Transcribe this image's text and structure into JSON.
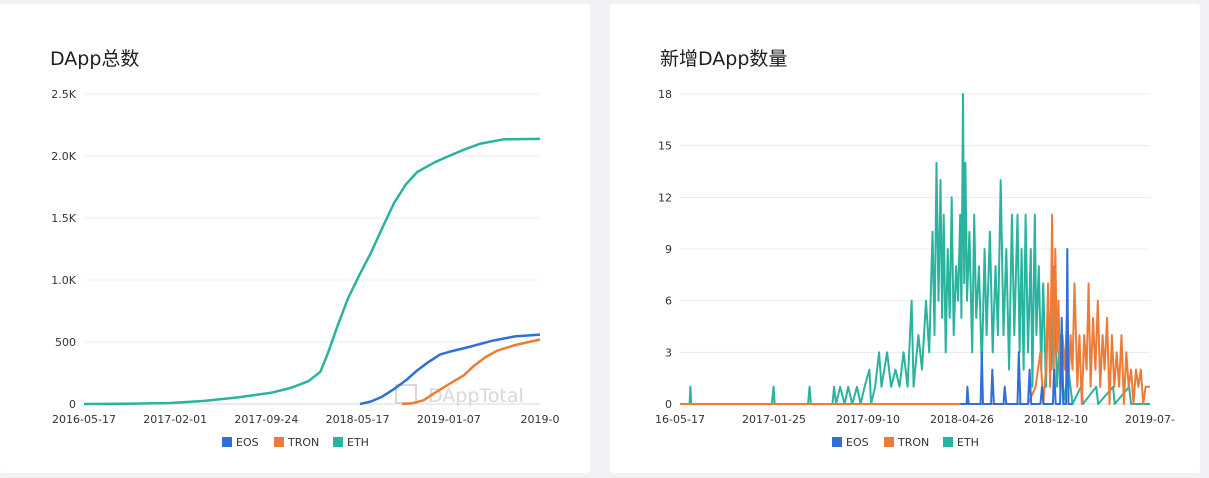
{
  "colors": {
    "EOS": "#2f6fd6",
    "TRON": "#ec7c37",
    "ETH": "#2ab39f"
  },
  "chart_data": [
    {
      "type": "line",
      "title": "DApp总数",
      "x_range": [
        "2016-05-17",
        "2019-09-05"
      ],
      "x_tick_labels": [
        "2016-05-17",
        "2017-02-01",
        "2017-09-24",
        "2018-05-17",
        "2019-01-07",
        "2019-0"
      ],
      "ylim": [
        0,
        2500
      ],
      "y_tick_labels": [
        "0",
        "500",
        "1.0K",
        "1.5K",
        "2.0K",
        "2.5K"
      ],
      "y_ticks": [
        0,
        500,
        1000,
        1500,
        2000,
        2500
      ],
      "legend": [
        "EOS",
        "TRON",
        "ETH"
      ],
      "watermark": "DAppTotal",
      "series": [
        {
          "name": "ETH",
          "points": [
            [
              "2016-05-17",
              0
            ],
            [
              "2016-09-01",
              2
            ],
            [
              "2017-01-01",
              8
            ],
            [
              "2017-04-01",
              25
            ],
            [
              "2017-07-01",
              55
            ],
            [
              "2017-09-24",
              90
            ],
            [
              "2017-11-15",
              130
            ],
            [
              "2018-01-01",
              185
            ],
            [
              "2018-02-01",
              260
            ],
            [
              "2018-02-20",
              400
            ],
            [
              "2018-03-15",
              600
            ],
            [
              "2018-04-15",
              850
            ],
            [
              "2018-05-17",
              1050
            ],
            [
              "2018-06-15",
              1220
            ],
            [
              "2018-07-15",
              1420
            ],
            [
              "2018-08-15",
              1620
            ],
            [
              "2018-09-15",
              1770
            ],
            [
              "2018-10-15",
              1870
            ],
            [
              "2018-12-01",
              1950
            ],
            [
              "2019-01-07",
              2000
            ],
            [
              "2019-02-15",
              2050
            ],
            [
              "2019-04-01",
              2100
            ],
            [
              "2019-06-01",
              2135
            ],
            [
              "2019-09-05",
              2138
            ]
          ]
        },
        {
          "name": "EOS",
          "points": [
            [
              "2018-05-17",
              0
            ],
            [
              "2018-06-15",
              20
            ],
            [
              "2018-07-15",
              60
            ],
            [
              "2018-08-15",
              120
            ],
            [
              "2018-09-15",
              190
            ],
            [
              "2018-10-15",
              270
            ],
            [
              "2018-11-15",
              340
            ],
            [
              "2018-12-15",
              400
            ],
            [
              "2019-01-07",
              420
            ],
            [
              "2019-03-01",
              460
            ],
            [
              "2019-05-01",
              510
            ],
            [
              "2019-07-01",
              545
            ],
            [
              "2019-09-05",
              560
            ]
          ]
        },
        {
          "name": "TRON",
          "points": [
            [
              "2018-09-05",
              0
            ],
            [
              "2018-10-01",
              5
            ],
            [
              "2018-11-01",
              30
            ],
            [
              "2018-12-01",
              90
            ],
            [
              "2019-01-07",
              160
            ],
            [
              "2019-02-15",
              230
            ],
            [
              "2019-03-15",
              310
            ],
            [
              "2019-04-15",
              380
            ],
            [
              "2019-05-15",
              430
            ],
            [
              "2019-07-01",
              475
            ],
            [
              "2019-09-05",
              520
            ]
          ]
        }
      ]
    },
    {
      "type": "line",
      "title": "新增DApp数量",
      "x_range": [
        "2016-05-17",
        "2019-08-01"
      ],
      "x_tick_labels": [
        "16-05-17",
        "2017-01-25",
        "2017-09-10",
        "2018-04-26",
        "2018-12-10",
        "2019-07-"
      ],
      "ylim": [
        0,
        18
      ],
      "y_tick_labels": [
        "0",
        "3",
        "6",
        "9",
        "12",
        "15",
        "18"
      ],
      "y_ticks": [
        0,
        3,
        6,
        9,
        12,
        15,
        18
      ],
      "legend": [
        "EOS",
        "TRON",
        "ETH"
      ],
      "series": [
        {
          "name": "ETH",
          "points": [
            [
              "2016-05-17",
              0
            ],
            [
              "2016-06-10",
              0
            ],
            [
              "2016-06-12",
              1
            ],
            [
              "2016-06-14",
              0
            ],
            [
              "2017-01-01",
              0
            ],
            [
              "2017-01-05",
              1
            ],
            [
              "2017-01-08",
              0
            ],
            [
              "2017-04-01",
              0
            ],
            [
              "2017-04-05",
              1
            ],
            [
              "2017-04-08",
              0
            ],
            [
              "2017-06-01",
              0
            ],
            [
              "2017-06-05",
              1
            ],
            [
              "2017-06-10",
              0
            ],
            [
              "2017-06-20",
              1
            ],
            [
              "2017-07-01",
              0
            ],
            [
              "2017-07-10",
              1
            ],
            [
              "2017-07-20",
              0
            ],
            [
              "2017-08-01",
              1
            ],
            [
              "2017-08-10",
              0
            ],
            [
              "2017-08-20",
              1
            ],
            [
              "2017-09-01",
              2
            ],
            [
              "2017-09-05",
              0
            ],
            [
              "2017-09-15",
              1
            ],
            [
              "2017-09-25",
              3
            ],
            [
              "2017-10-01",
              1
            ],
            [
              "2017-10-15",
              3
            ],
            [
              "2017-10-25",
              1
            ],
            [
              "2017-11-05",
              2
            ],
            [
              "2017-11-15",
              1
            ],
            [
              "2017-11-25",
              3
            ],
            [
              "2017-12-05",
              1
            ],
            [
              "2017-12-15",
              6
            ],
            [
              "2017-12-20",
              1
            ],
            [
              "2018-01-01",
              4
            ],
            [
              "2018-01-10",
              2
            ],
            [
              "2018-01-20",
              6
            ],
            [
              "2018-01-28",
              3
            ],
            [
              "2018-02-05",
              10
            ],
            [
              "2018-02-10",
              4
            ],
            [
              "2018-02-15",
              14
            ],
            [
              "2018-02-20",
              6
            ],
            [
              "2018-02-25",
              13
            ],
            [
              "2018-03-01",
              5
            ],
            [
              "2018-03-05",
              11
            ],
            [
              "2018-03-10",
              3
            ],
            [
              "2018-03-15",
              9
            ],
            [
              "2018-03-20",
              5
            ],
            [
              "2018-03-25",
              12
            ],
            [
              "2018-03-30",
              4
            ],
            [
              "2018-04-05",
              8
            ],
            [
              "2018-04-10",
              6
            ],
            [
              "2018-04-15",
              11
            ],
            [
              "2018-04-18",
              5
            ],
            [
              "2018-04-22",
              18
            ],
            [
              "2018-04-25",
              7
            ],
            [
              "2018-04-28",
              14
            ],
            [
              "2018-05-02",
              6
            ],
            [
              "2018-05-08",
              10
            ],
            [
              "2018-05-15",
              3
            ],
            [
              "2018-05-20",
              11
            ],
            [
              "2018-05-25",
              5
            ],
            [
              "2018-06-01",
              8
            ],
            [
              "2018-06-08",
              2
            ],
            [
              "2018-06-15",
              9
            ],
            [
              "2018-06-20",
              4
            ],
            [
              "2018-06-28",
              10
            ],
            [
              "2018-07-05",
              3
            ],
            [
              "2018-07-12",
              8
            ],
            [
              "2018-07-18",
              4
            ],
            [
              "2018-07-25",
              13
            ],
            [
              "2018-08-01",
              4
            ],
            [
              "2018-08-08",
              9
            ],
            [
              "2018-08-15",
              2
            ],
            [
              "2018-08-22",
              11
            ],
            [
              "2018-08-28",
              4
            ],
            [
              "2018-09-05",
              11
            ],
            [
              "2018-09-10",
              3
            ],
            [
              "2018-09-15",
              9
            ],
            [
              "2018-09-20",
              2
            ],
            [
              "2018-09-25",
              11
            ],
            [
              "2018-10-01",
              3
            ],
            [
              "2018-10-08",
              9
            ],
            [
              "2018-10-12",
              1
            ],
            [
              "2018-10-18",
              11
            ],
            [
              "2018-10-22",
              4
            ],
            [
              "2018-10-28",
              8
            ],
            [
              "2018-11-03",
              2
            ],
            [
              "2018-11-08",
              7
            ],
            [
              "2018-11-15",
              1
            ],
            [
              "2018-11-20",
              6
            ],
            [
              "2018-11-28",
              2
            ],
            [
              "2018-12-05",
              8
            ],
            [
              "2018-12-12",
              1
            ],
            [
              "2018-12-20",
              4
            ],
            [
              "2018-12-28",
              0
            ],
            [
              "2019-01-10",
              2
            ],
            [
              "2019-01-20",
              0
            ],
            [
              "2019-02-10",
              1
            ],
            [
              "2019-02-15",
              0
            ],
            [
              "2019-03-20",
              1
            ],
            [
              "2019-03-25",
              0
            ],
            [
              "2019-05-01",
              1
            ],
            [
              "2019-05-05",
              0
            ],
            [
              "2019-06-10",
              1
            ],
            [
              "2019-06-15",
              0
            ],
            [
              "2019-08-01",
              0
            ]
          ]
        },
        {
          "name": "TRON",
          "points": [
            [
              "2016-05-17",
              0
            ],
            [
              "2018-10-01",
              0
            ],
            [
              "2018-10-20",
              1
            ],
            [
              "2018-11-01",
              3
            ],
            [
              "2018-11-08",
              0
            ],
            [
              "2018-11-15",
              2
            ],
            [
              "2018-11-20",
              7
            ],
            [
              "2018-11-25",
              1
            ],
            [
              "2018-11-30",
              11
            ],
            [
              "2018-12-04",
              2
            ],
            [
              "2018-12-08",
              9
            ],
            [
              "2018-12-12",
              3
            ],
            [
              "2018-12-16",
              6
            ],
            [
              "2018-12-20",
              1
            ],
            [
              "2018-12-26",
              4
            ],
            [
              "2019-01-01",
              2
            ],
            [
              "2019-01-06",
              5
            ],
            [
              "2019-01-10",
              1
            ],
            [
              "2019-01-15",
              4
            ],
            [
              "2019-01-20",
              2
            ],
            [
              "2019-01-25",
              7
            ],
            [
              "2019-02-01",
              1
            ],
            [
              "2019-02-06",
              4
            ],
            [
              "2019-02-12",
              0
            ],
            [
              "2019-02-18",
              4
            ],
            [
              "2019-02-24",
              2
            ],
            [
              "2019-03-01",
              7
            ],
            [
              "2019-03-06",
              1
            ],
            [
              "2019-03-12",
              5
            ],
            [
              "2019-03-18",
              2
            ],
            [
              "2019-03-24",
              6
            ],
            [
              "2019-03-30",
              1
            ],
            [
              "2019-04-05",
              4
            ],
            [
              "2019-04-10",
              2
            ],
            [
              "2019-04-16",
              5
            ],
            [
              "2019-04-22",
              0
            ],
            [
              "2019-04-28",
              4
            ],
            [
              "2019-05-04",
              1
            ],
            [
              "2019-05-10",
              3
            ],
            [
              "2019-05-16",
              1
            ],
            [
              "2019-05-22",
              4
            ],
            [
              "2019-05-28",
              0
            ],
            [
              "2019-06-03",
              3
            ],
            [
              "2019-06-09",
              1
            ],
            [
              "2019-06-15",
              2
            ],
            [
              "2019-06-21",
              0
            ],
            [
              "2019-06-27",
              2
            ],
            [
              "2019-07-03",
              1
            ],
            [
              "2019-07-09",
              2
            ],
            [
              "2019-07-15",
              0
            ],
            [
              "2019-07-21",
              1
            ],
            [
              "2019-08-01",
              1
            ]
          ]
        },
        {
          "name": "EOS",
          "points": [
            [
              "2018-04-15",
              0
            ],
            [
              "2018-05-01",
              0
            ],
            [
              "2018-05-03",
              1
            ],
            [
              "2018-05-06",
              0
            ],
            [
              "2018-06-05",
              0
            ],
            [
              "2018-06-08",
              3
            ],
            [
              "2018-06-11",
              0
            ],
            [
              "2018-07-01",
              0
            ],
            [
              "2018-07-04",
              2
            ],
            [
              "2018-07-08",
              0
            ],
            [
              "2018-08-01",
              0
            ],
            [
              "2018-08-04",
              1
            ],
            [
              "2018-08-08",
              0
            ],
            [
              "2018-09-05",
              0
            ],
            [
              "2018-09-08",
              3
            ],
            [
              "2018-09-12",
              0
            ],
            [
              "2018-10-01",
              0
            ],
            [
              "2018-10-05",
              2
            ],
            [
              "2018-10-09",
              0
            ],
            [
              "2018-11-01",
              0
            ],
            [
              "2018-11-05",
              1
            ],
            [
              "2018-11-09",
              0
            ],
            [
              "2018-12-02",
              0
            ],
            [
              "2018-12-05",
              2
            ],
            [
              "2018-12-09",
              0
            ],
            [
              "2018-12-20",
              0
            ],
            [
              "2018-12-24",
              5
            ],
            [
              "2018-12-28",
              0
            ],
            [
              "2019-01-04",
              0
            ],
            [
              "2019-01-07",
              9
            ],
            [
              "2019-01-10",
              0
            ],
            [
              "2019-01-20",
              0
            ]
          ]
        }
      ]
    }
  ]
}
